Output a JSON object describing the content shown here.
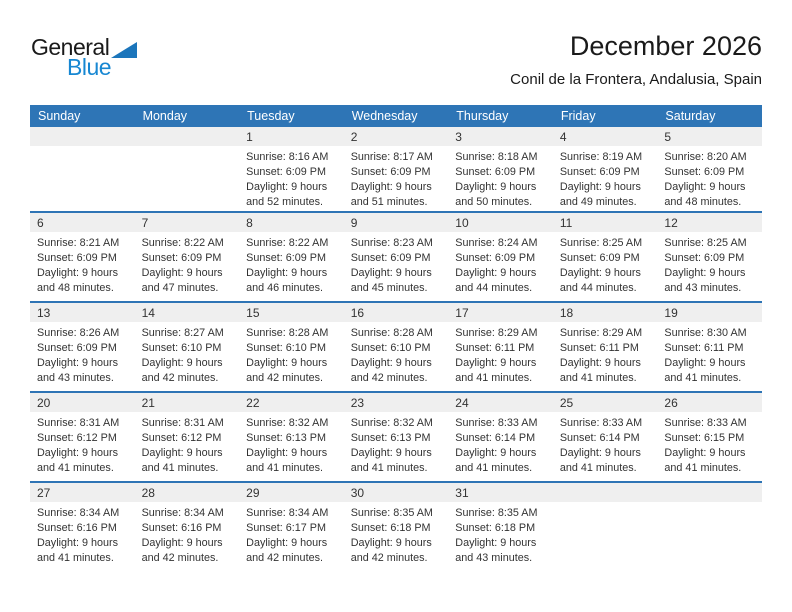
{
  "logo": {
    "part1": "General",
    "part2": "Blue"
  },
  "header": {
    "title": "December 2026",
    "subtitle": "Conil de la Frontera, Andalusia, Spain"
  },
  "colors": {
    "header_bg": "#2E75B6",
    "row_border_blue": "#2E74B5",
    "number_band_bg": "#EFEFEF",
    "body_text": "#333333",
    "logo_blue": "#1787D2",
    "logo_triangle_blue": "#1B75BB"
  },
  "calendar": {
    "weekday_headers": [
      "Sunday",
      "Monday",
      "Tuesday",
      "Wednesday",
      "Thursday",
      "Friday",
      "Saturday"
    ],
    "weeks": [
      [
        {
          "day": "",
          "lines": []
        },
        {
          "day": "",
          "lines": []
        },
        {
          "day": "1",
          "lines": [
            "Sunrise: 8:16 AM",
            "Sunset: 6:09 PM",
            "Daylight: 9 hours",
            "and 52 minutes."
          ]
        },
        {
          "day": "2",
          "lines": [
            "Sunrise: 8:17 AM",
            "Sunset: 6:09 PM",
            "Daylight: 9 hours",
            "and 51 minutes."
          ]
        },
        {
          "day": "3",
          "lines": [
            "Sunrise: 8:18 AM",
            "Sunset: 6:09 PM",
            "Daylight: 9 hours",
            "and 50 minutes."
          ]
        },
        {
          "day": "4",
          "lines": [
            "Sunrise: 8:19 AM",
            "Sunset: 6:09 PM",
            "Daylight: 9 hours",
            "and 49 minutes."
          ]
        },
        {
          "day": "5",
          "lines": [
            "Sunrise: 8:20 AM",
            "Sunset: 6:09 PM",
            "Daylight: 9 hours",
            "and 48 minutes."
          ]
        }
      ],
      [
        {
          "day": "6",
          "lines": [
            "Sunrise: 8:21 AM",
            "Sunset: 6:09 PM",
            "Daylight: 9 hours",
            "and 48 minutes."
          ]
        },
        {
          "day": "7",
          "lines": [
            "Sunrise: 8:22 AM",
            "Sunset: 6:09 PM",
            "Daylight: 9 hours",
            "and 47 minutes."
          ]
        },
        {
          "day": "8",
          "lines": [
            "Sunrise: 8:22 AM",
            "Sunset: 6:09 PM",
            "Daylight: 9 hours",
            "and 46 minutes."
          ]
        },
        {
          "day": "9",
          "lines": [
            "Sunrise: 8:23 AM",
            "Sunset: 6:09 PM",
            "Daylight: 9 hours",
            "and 45 minutes."
          ]
        },
        {
          "day": "10",
          "lines": [
            "Sunrise: 8:24 AM",
            "Sunset: 6:09 PM",
            "Daylight: 9 hours",
            "and 44 minutes."
          ]
        },
        {
          "day": "11",
          "lines": [
            "Sunrise: 8:25 AM",
            "Sunset: 6:09 PM",
            "Daylight: 9 hours",
            "and 44 minutes."
          ]
        },
        {
          "day": "12",
          "lines": [
            "Sunrise: 8:25 AM",
            "Sunset: 6:09 PM",
            "Daylight: 9 hours",
            "and 43 minutes."
          ]
        }
      ],
      [
        {
          "day": "13",
          "lines": [
            "Sunrise: 8:26 AM",
            "Sunset: 6:09 PM",
            "Daylight: 9 hours",
            "and 43 minutes."
          ]
        },
        {
          "day": "14",
          "lines": [
            "Sunrise: 8:27 AM",
            "Sunset: 6:10 PM",
            "Daylight: 9 hours",
            "and 42 minutes."
          ]
        },
        {
          "day": "15",
          "lines": [
            "Sunrise: 8:28 AM",
            "Sunset: 6:10 PM",
            "Daylight: 9 hours",
            "and 42 minutes."
          ]
        },
        {
          "day": "16",
          "lines": [
            "Sunrise: 8:28 AM",
            "Sunset: 6:10 PM",
            "Daylight: 9 hours",
            "and 42 minutes."
          ]
        },
        {
          "day": "17",
          "lines": [
            "Sunrise: 8:29 AM",
            "Sunset: 6:11 PM",
            "Daylight: 9 hours",
            "and 41 minutes."
          ]
        },
        {
          "day": "18",
          "lines": [
            "Sunrise: 8:29 AM",
            "Sunset: 6:11 PM",
            "Daylight: 9 hours",
            "and 41 minutes."
          ]
        },
        {
          "day": "19",
          "lines": [
            "Sunrise: 8:30 AM",
            "Sunset: 6:11 PM",
            "Daylight: 9 hours",
            "and 41 minutes."
          ]
        }
      ],
      [
        {
          "day": "20",
          "lines": [
            "Sunrise: 8:31 AM",
            "Sunset: 6:12 PM",
            "Daylight: 9 hours",
            "and 41 minutes."
          ]
        },
        {
          "day": "21",
          "lines": [
            "Sunrise: 8:31 AM",
            "Sunset: 6:12 PM",
            "Daylight: 9 hours",
            "and 41 minutes."
          ]
        },
        {
          "day": "22",
          "lines": [
            "Sunrise: 8:32 AM",
            "Sunset: 6:13 PM",
            "Daylight: 9 hours",
            "and 41 minutes."
          ]
        },
        {
          "day": "23",
          "lines": [
            "Sunrise: 8:32 AM",
            "Sunset: 6:13 PM",
            "Daylight: 9 hours",
            "and 41 minutes."
          ]
        },
        {
          "day": "24",
          "lines": [
            "Sunrise: 8:33 AM",
            "Sunset: 6:14 PM",
            "Daylight: 9 hours",
            "and 41 minutes."
          ]
        },
        {
          "day": "25",
          "lines": [
            "Sunrise: 8:33 AM",
            "Sunset: 6:14 PM",
            "Daylight: 9 hours",
            "and 41 minutes."
          ]
        },
        {
          "day": "26",
          "lines": [
            "Sunrise: 8:33 AM",
            "Sunset: 6:15 PM",
            "Daylight: 9 hours",
            "and 41 minutes."
          ]
        }
      ],
      [
        {
          "day": "27",
          "lines": [
            "Sunrise: 8:34 AM",
            "Sunset: 6:16 PM",
            "Daylight: 9 hours",
            "and 41 minutes."
          ]
        },
        {
          "day": "28",
          "lines": [
            "Sunrise: 8:34 AM",
            "Sunset: 6:16 PM",
            "Daylight: 9 hours",
            "and 42 minutes."
          ]
        },
        {
          "day": "29",
          "lines": [
            "Sunrise: 8:34 AM",
            "Sunset: 6:17 PM",
            "Daylight: 9 hours",
            "and 42 minutes."
          ]
        },
        {
          "day": "30",
          "lines": [
            "Sunrise: 8:35 AM",
            "Sunset: 6:18 PM",
            "Daylight: 9 hours",
            "and 42 minutes."
          ]
        },
        {
          "day": "31",
          "lines": [
            "Sunrise: 8:35 AM",
            "Sunset: 6:18 PM",
            "Daylight: 9 hours",
            "and 43 minutes."
          ]
        },
        {
          "day": "",
          "lines": []
        },
        {
          "day": "",
          "lines": []
        }
      ]
    ]
  }
}
